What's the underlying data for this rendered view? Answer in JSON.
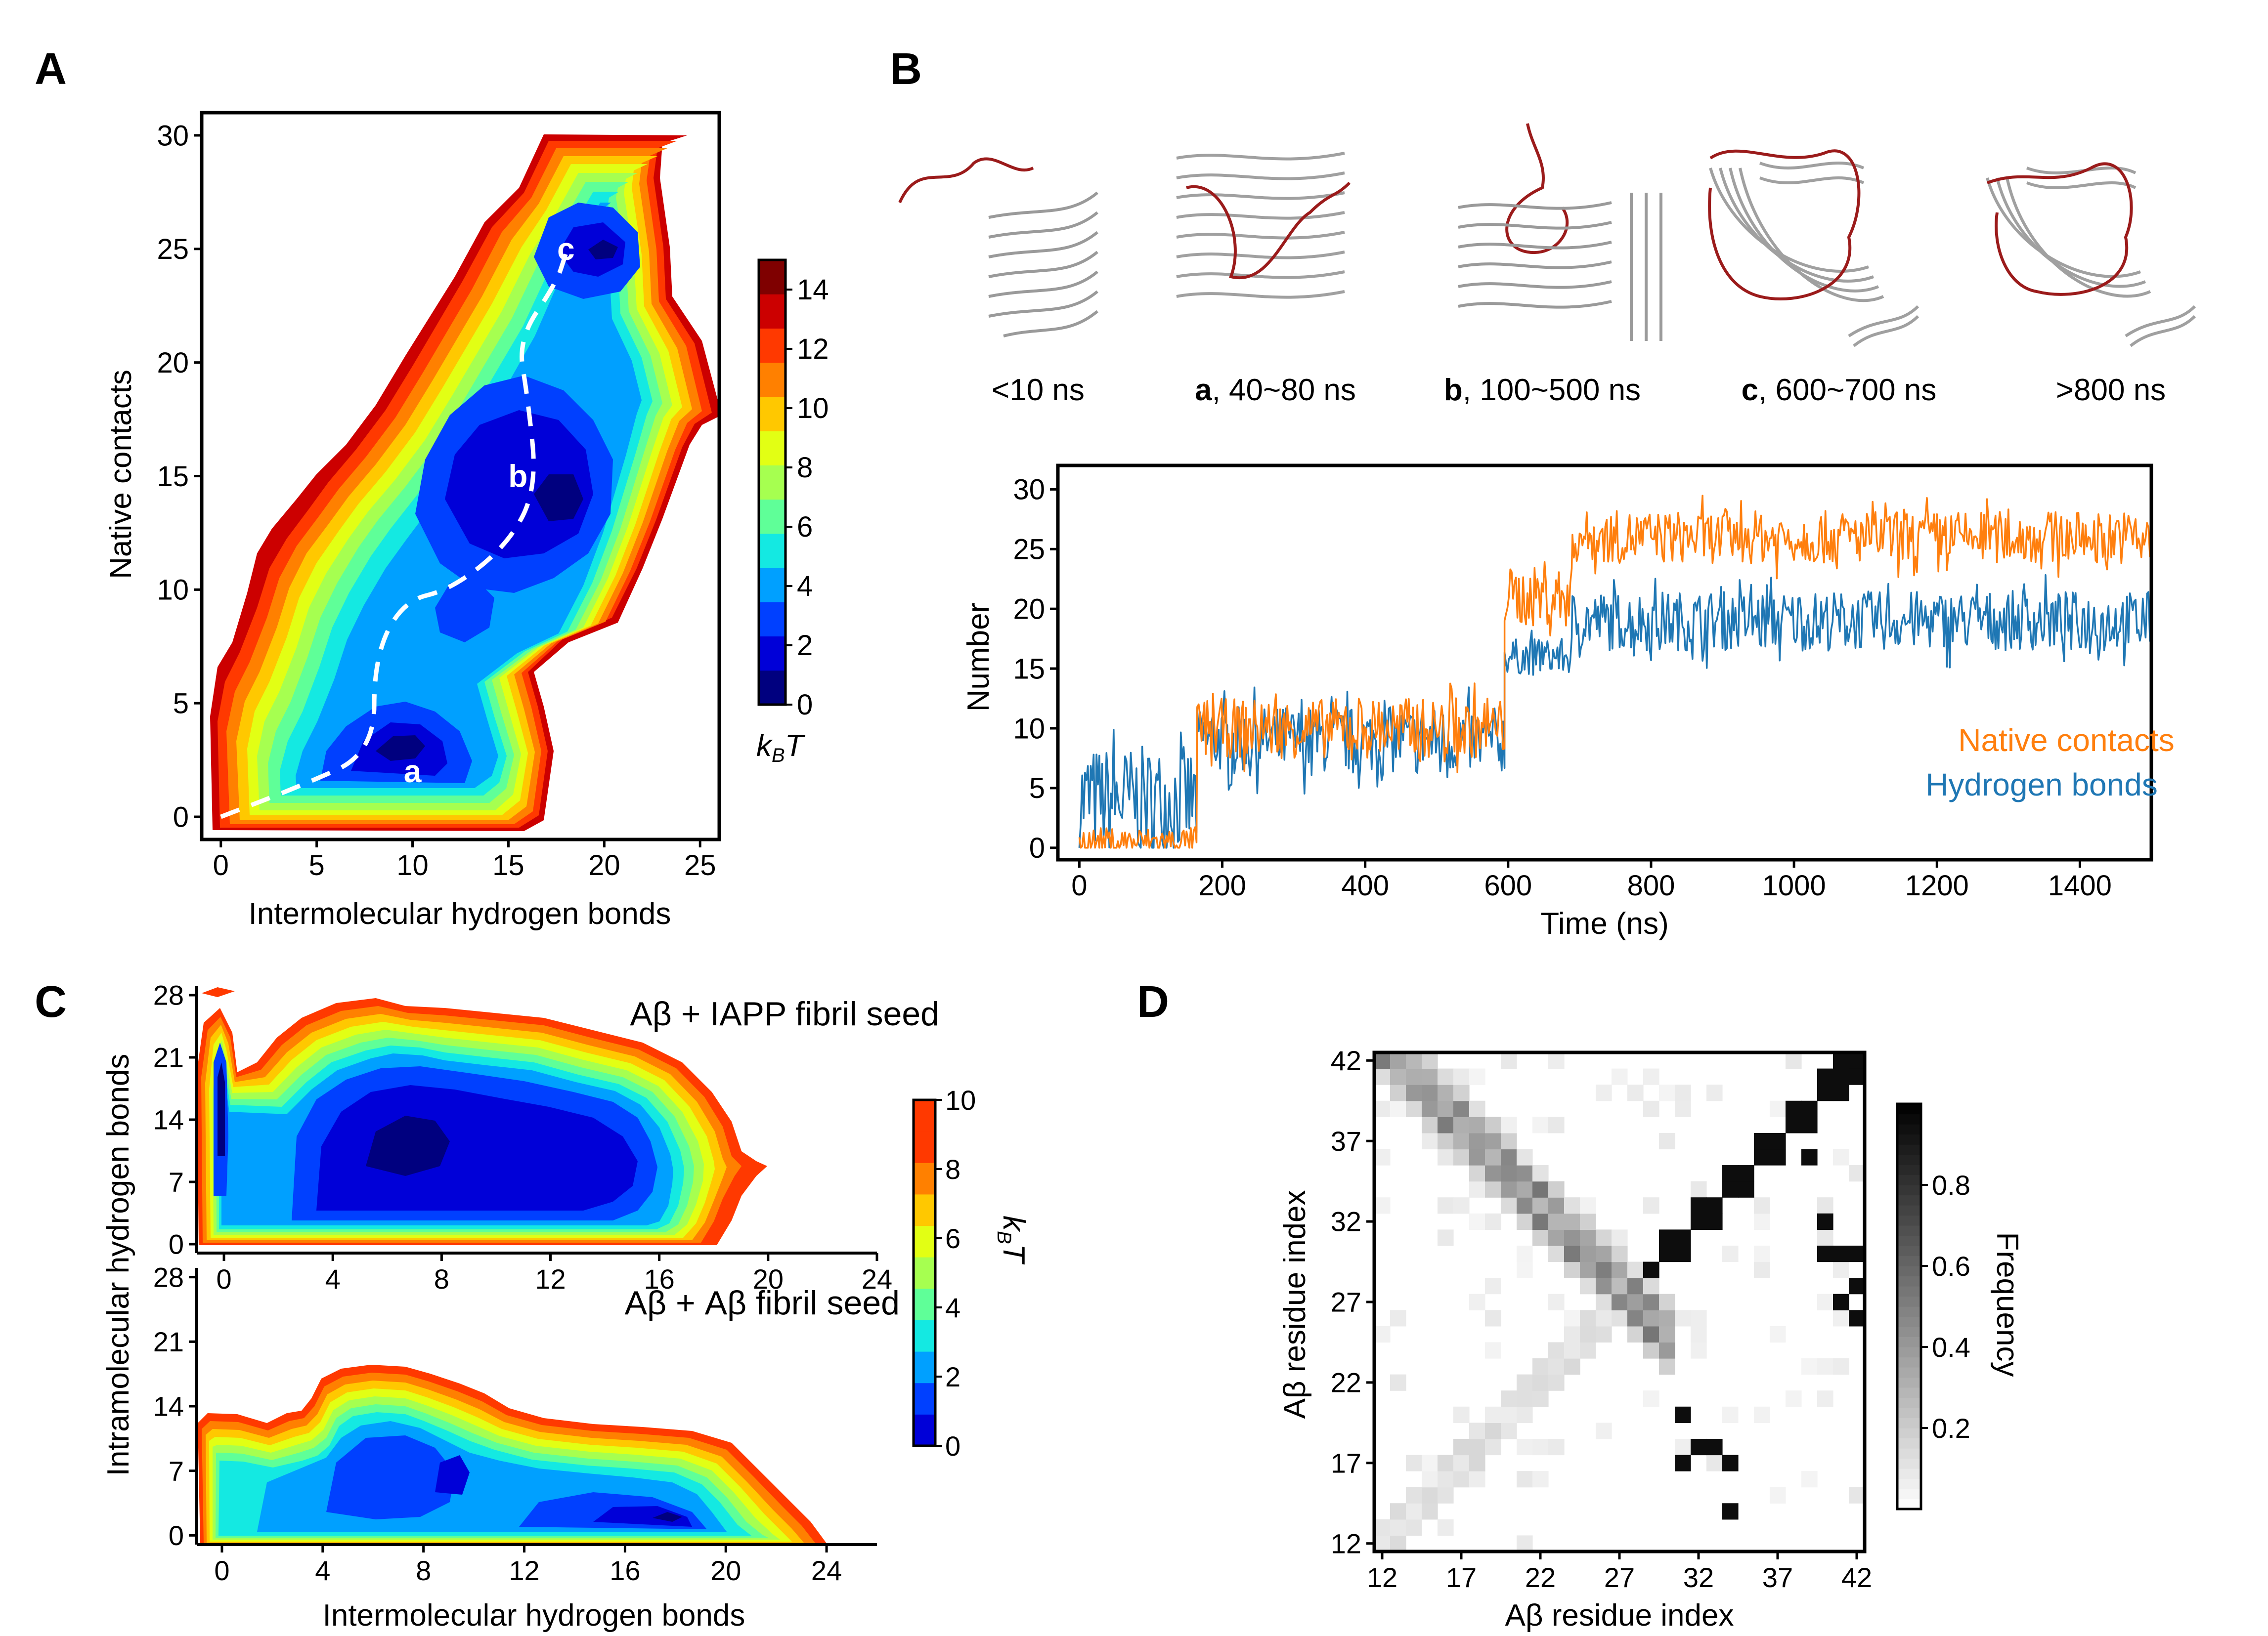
{
  "colors": {
    "jet": [
      "#00007f",
      "#0000d8",
      "#0040ff",
      "#00a0ff",
      "#14e9e2",
      "#5fff98",
      "#a6ff50",
      "#e2ff14",
      "#ffc800",
      "#ff8000",
      "#ff3900",
      "#cc0000",
      "#7f0000"
    ],
    "orange": "#ff7f0e",
    "blue": "#1f77b4"
  },
  "panels": {
    "A": {
      "label": "A",
      "xlabel": "Intermolecular hydrogen bonds",
      "ylabel": "Native contacts",
      "cbar_label": "k_BT",
      "markers": [
        "a",
        "b",
        "c"
      ]
    },
    "B": {
      "label": "B",
      "snapshots": [
        {
          "bold": "",
          "text": "<10 ns"
        },
        {
          "bold": "a",
          "text": ", 40~80 ns"
        },
        {
          "bold": "b",
          "text": ", 100~500 ns"
        },
        {
          "bold": "c",
          "text": ", 600~700 ns"
        },
        {
          "bold": "",
          "text": ">800 ns"
        }
      ]
    },
    "C": {
      "label": "C",
      "top_title": "Aβ + IAPP fibril seed",
      "bottom_title": "Aβ + Aβ fibril seed",
      "xlabel": "Intermolecular hydrogen bonds",
      "ylabel": "Intramolecular hydrogen bonds",
      "cbar_label": "k_BT"
    },
    "D": {
      "label": "D",
      "xlabel": "Aβ residue index",
      "ylabel": "Aβ residue index",
      "cbar_label": "Frequency"
    }
  },
  "chart_data": [
    {
      "id": "A",
      "type": "heatmap",
      "title": "",
      "xlabel": "Intermolecular hydrogen bonds",
      "ylabel": "Native contacts",
      "xlim": [
        -1,
        26
      ],
      "ylim": [
        -1,
        31
      ],
      "xticks": [
        0,
        5,
        10,
        15,
        20,
        25
      ],
      "yticks": [
        0,
        5,
        10,
        15,
        20,
        25,
        30
      ],
      "colorbar": {
        "label": "k_BT",
        "range": [
          0,
          15
        ],
        "ticks": [
          0,
          2,
          4,
          6,
          8,
          10,
          12,
          14
        ]
      },
      "path": {
        "style": "dashed",
        "color": "white",
        "points": [
          [
            0,
            0
          ],
          [
            4,
            1.3
          ],
          [
            8,
            2.8
          ],
          [
            8,
            7
          ],
          [
            9.5,
            9.5
          ],
          [
            12,
            10
          ],
          [
            15,
            12
          ],
          [
            16.5,
            14.5
          ],
          [
            16,
            18.5
          ],
          [
            15.5,
            21
          ],
          [
            17.5,
            23.5
          ],
          [
            18,
            24.8
          ]
        ]
      },
      "minima": [
        {
          "label": "a",
          "x": 10,
          "y": 2
        },
        {
          "label": "b",
          "x": 15.5,
          "y": 15
        },
        {
          "label": "c",
          "x": 18,
          "y": 25
        }
      ]
    },
    {
      "id": "B",
      "type": "line",
      "xlabel": "Time (ns)",
      "ylabel": "Number",
      "xlim": [
        -30,
        1500
      ],
      "ylim": [
        -1,
        32
      ],
      "xticks": [
        0,
        200,
        400,
        600,
        800,
        1000,
        1200,
        1400
      ],
      "yticks": [
        0,
        5,
        10,
        15,
        20,
        25,
        30
      ],
      "legend": "bottom-right",
      "series": [
        {
          "name": "Native contacts",
          "color": "#ff7f0e",
          "segments": [
            {
              "t0": 0,
              "t1": 165,
              "mean": 0.5,
              "spread": 1.2
            },
            {
              "t0": 165,
              "t1": 595,
              "mean": 10,
              "spread": 2.5
            },
            {
              "t0": 595,
              "t1": 690,
              "mean": 21,
              "spread": 2.5
            },
            {
              "t0": 690,
              "t1": 1500,
              "mean": 26,
              "spread": 2.2
            }
          ]
        },
        {
          "name": "Hydrogen bonds",
          "color": "#1f77b4",
          "segments": [
            {
              "t0": 0,
              "t1": 165,
              "mean": 4,
              "spread": 4.5
            },
            {
              "t0": 165,
              "t1": 595,
              "mean": 9,
              "spread": 2.8
            },
            {
              "t0": 595,
              "t1": 690,
              "mean": 16,
              "spread": 1.5
            },
            {
              "t0": 690,
              "t1": 1500,
              "mean": 19,
              "spread": 2.5
            }
          ]
        }
      ]
    },
    {
      "id": "C-top",
      "type": "heatmap",
      "title": "Aβ + IAPP fibril seed",
      "xlabel": "",
      "ylabel": "Intramolecular hydrogen bonds",
      "xlim": [
        -1,
        24
      ],
      "ylim": [
        -1,
        29
      ],
      "xticks": [
        0,
        4,
        8,
        12,
        16,
        20,
        24
      ],
      "yticks": [
        0,
        7,
        14,
        21,
        28
      ],
      "colorbar": {
        "label": "k_BT",
        "range": [
          0,
          10
        ],
        "ticks": [
          0,
          2,
          4,
          6,
          8,
          10
        ]
      }
    },
    {
      "id": "C-bottom",
      "type": "heatmap",
      "title": "Aβ + Aβ fibril seed",
      "xlabel": "Intermolecular hydrogen bonds",
      "ylabel": "Intramolecular hydrogen bonds",
      "xlim": [
        -1,
        26
      ],
      "ylim": [
        -1,
        29
      ],
      "xticks": [
        0,
        4,
        8,
        12,
        16,
        20,
        24
      ],
      "yticks": [
        0,
        7,
        14,
        21,
        28
      ]
    },
    {
      "id": "D",
      "type": "heatmap",
      "title": "",
      "xlabel": "Aβ residue index",
      "ylabel": "Aβ residue index",
      "xlim": [
        11.5,
        42.5
      ],
      "ylim": [
        11.5,
        42.5
      ],
      "xticks": [
        12,
        17,
        22,
        27,
        32,
        37,
        42
      ],
      "yticks": [
        12,
        17,
        22,
        27,
        32,
        37,
        42
      ],
      "colorbar": {
        "label": "Frequency",
        "range": [
          0,
          1
        ],
        "ticks": [
          0.2,
          0.4,
          0.6,
          0.8
        ]
      },
      "high_frequency_cells": [
        [
          29,
          29
        ],
        [
          30,
          30
        ],
        [
          31,
          30
        ],
        [
          30,
          31
        ],
        [
          31,
          31
        ],
        [
          32,
          32
        ],
        [
          33,
          32
        ],
        [
          32,
          33
        ],
        [
          33,
          33
        ],
        [
          34,
          34
        ],
        [
          35,
          34
        ],
        [
          34,
          35
        ],
        [
          35,
          35
        ],
        [
          36,
          36
        ],
        [
          37,
          36
        ],
        [
          36,
          37
        ],
        [
          37,
          37
        ],
        [
          38,
          38
        ],
        [
          39,
          38
        ],
        [
          38,
          39
        ],
        [
          39,
          39
        ],
        [
          40,
          40
        ],
        [
          41,
          40
        ],
        [
          40,
          41
        ],
        [
          41,
          41
        ],
        [
          42,
          42
        ],
        [
          41,
          42
        ],
        [
          42,
          41
        ],
        [
          31,
          17
        ],
        [
          32,
          18
        ],
        [
          33,
          18
        ],
        [
          34,
          17
        ],
        [
          31,
          20
        ],
        [
          34,
          14
        ],
        [
          41,
          27
        ],
        [
          42,
          26
        ],
        [
          42,
          28
        ],
        [
          40,
          32
        ],
        [
          40,
          30
        ],
        [
          41,
          30
        ],
        [
          42,
          30
        ],
        [
          39,
          36
        ]
      ]
    }
  ]
}
